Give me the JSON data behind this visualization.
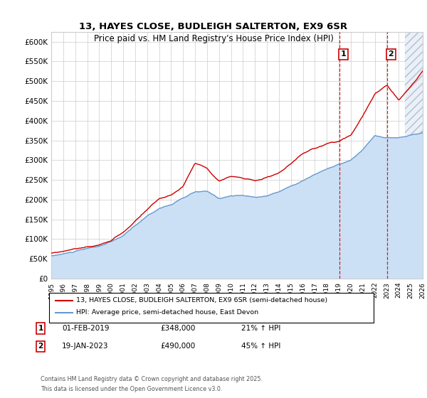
{
  "title1": "13, HAYES CLOSE, BUDLEIGH SALTERTON, EX9 6SR",
  "title2": "Price paid vs. HM Land Registry's House Price Index (HPI)",
  "ylim": [
    0,
    625000
  ],
  "yticks": [
    0,
    50000,
    100000,
    150000,
    200000,
    250000,
    300000,
    350000,
    400000,
    450000,
    500000,
    550000,
    600000
  ],
  "ytick_labels": [
    "£0",
    "£50K",
    "£100K",
    "£150K",
    "£200K",
    "£250K",
    "£300K",
    "£350K",
    "£400K",
    "£450K",
    "£500K",
    "£550K",
    "£600K"
  ],
  "xmin_year": 1995,
  "xmax_year": 2026,
  "xtick_years": [
    1995,
    1996,
    1997,
    1998,
    1999,
    2000,
    2001,
    2002,
    2003,
    2004,
    2005,
    2006,
    2007,
    2008,
    2009,
    2010,
    2011,
    2012,
    2013,
    2014,
    2015,
    2016,
    2017,
    2018,
    2019,
    2020,
    2021,
    2022,
    2023,
    2024,
    2025,
    2026
  ],
  "red_color": "#cc0000",
  "blue_color": "#6699cc",
  "blue_fill_color": "#cce0f5",
  "grid_color": "#cccccc",
  "bg_color": "#ffffff",
  "marker1_date_x": 2019.08,
  "marker1_y": 348000,
  "marker1_label": "1",
  "marker1_date_str": "01-FEB-2019",
  "marker1_price": "£348,000",
  "marker1_hpi": "21% ↑ HPI",
  "marker2_date_x": 2023.05,
  "marker2_y": 490000,
  "marker2_label": "2",
  "marker2_date_str": "19-JAN-2023",
  "marker2_price": "£490,000",
  "marker2_hpi": "45% ↑ HPI",
  "legend_line1": "13, HAYES CLOSE, BUDLEIGH SALTERTON, EX9 6SR (semi-detached house)",
  "legend_line2": "HPI: Average price, semi-detached house, East Devon",
  "footnote1": "Contains HM Land Registry data © Crown copyright and database right 2025.",
  "footnote2": "This data is licensed under the Open Government Licence v3.0."
}
